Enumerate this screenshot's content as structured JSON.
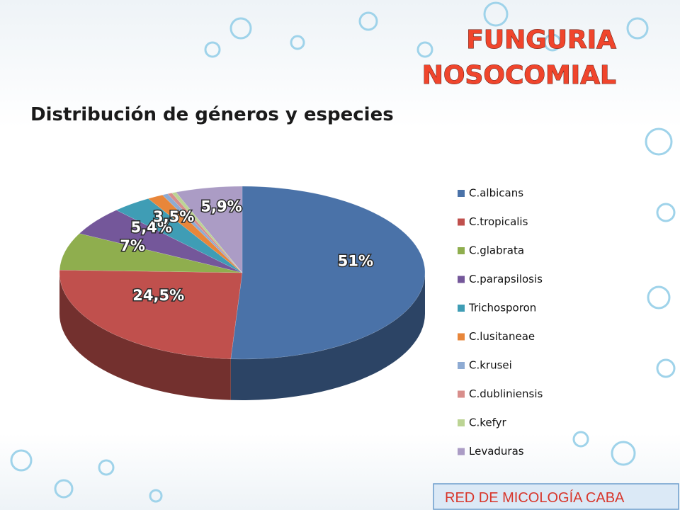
{
  "chart_data": {
    "type": "pie3d",
    "title": [
      "FUNGURIA",
      "NOSOCOMIAL"
    ],
    "subtitle": "Distribución de géneros y especies",
    "footer": "RED DE MICOLOGÍA  CABA",
    "legend": "right",
    "categories": [
      "C.albicans",
      "C.tropicalis",
      "C.glabrata",
      "C.parapsilosis",
      "Trichosporon",
      "C.lusitaneae",
      "C.krusei",
      "C.dubliniensis",
      "C.kefyr",
      "Levaduras"
    ],
    "values": [
      51,
      24.5,
      7,
      5.4,
      3.5,
      1.4,
      0.5,
      0.4,
      0.4,
      5.9
    ],
    "value_labels": [
      "51%",
      "24,5%",
      "7%",
      "5,4%",
      "3,5%",
      null,
      null,
      null,
      null,
      "5,9%"
    ],
    "colors": [
      "#4a72a8",
      "#c0504d",
      "#8fae4e",
      "#74579a",
      "#3f9db5",
      "#e8863a",
      "#8eabd3",
      "#d88e8b",
      "#bcd494",
      "#ab9cc5"
    ]
  }
}
